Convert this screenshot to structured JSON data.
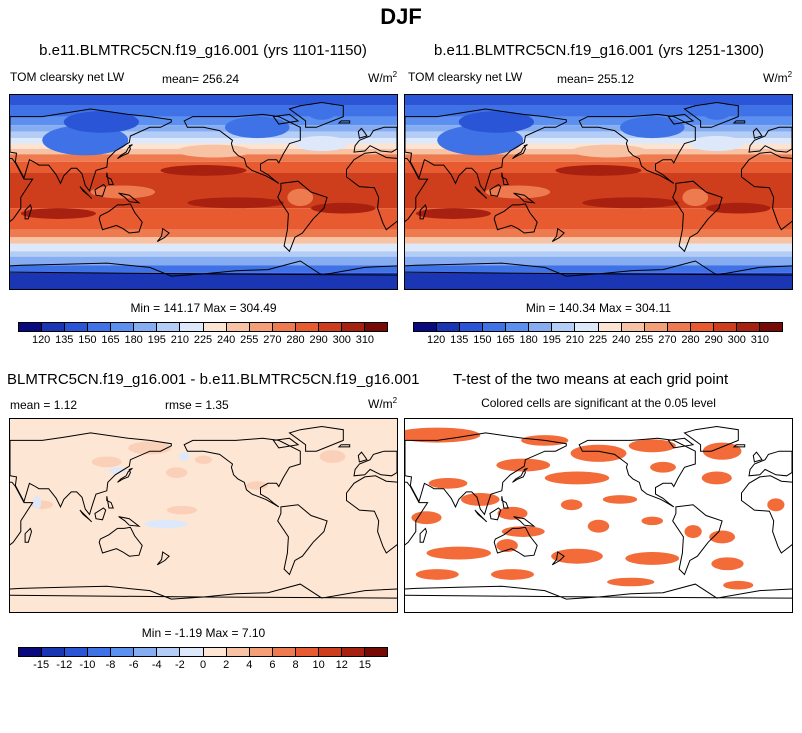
{
  "figure": {
    "title": "DJF",
    "units_prefix": "W/m",
    "units_exp": "2"
  },
  "chart_data": [
    {
      "type": "heatmap",
      "panel": "top-left",
      "title": "b.e11.BLMTRC5CN.f19_g16.001 (yrs 1101-1150)",
      "variable_label": "TOM clearsky net LW",
      "mean_label": "mean= 256.24",
      "mean": 256.24,
      "stats_label": "Min = 141.17 Max = 304.49",
      "min": 141.17,
      "max": 304.49,
      "colorbar_levels": [
        "120",
        "135",
        "150",
        "165",
        "180",
        "195",
        "210",
        "225",
        "240",
        "255",
        "270",
        "280",
        "290",
        "300",
        "310"
      ]
    },
    {
      "type": "heatmap",
      "panel": "top-right",
      "title": "b.e11.BLMTRC5CN.f19_g16.001 (yrs 1251-1300)",
      "variable_label": "TOM clearsky net LW",
      "mean_label": "mean= 255.12",
      "mean": 255.12,
      "stats_label": "Min = 140.34 Max = 304.11",
      "min": 140.34,
      "max": 304.11,
      "colorbar_levels": [
        "120",
        "135",
        "150",
        "165",
        "180",
        "195",
        "210",
        "225",
        "240",
        "255",
        "270",
        "280",
        "290",
        "300",
        "310"
      ]
    },
    {
      "type": "heatmap",
      "panel": "bottom-left",
      "title": "BLMTRC5CN.f19_g16.001 - b.e11.BLMTRC5CN.f19_g16.001",
      "mean_label": "mean =   1.12",
      "mean": 1.12,
      "rmse_label": "rmse =   1.35",
      "rmse": 1.35,
      "stats_label": "Min =  -1.19 Max =   7.10",
      "min": -1.19,
      "max": 7.1,
      "colorbar_levels": [
        "-15",
        "-12",
        "-10",
        "-8",
        "-6",
        "-4",
        "-2",
        "0",
        "2",
        "4",
        "6",
        "8",
        "10",
        "12",
        "15"
      ]
    },
    {
      "type": "heatmap",
      "panel": "bottom-right",
      "title": "T-test of the two means at each grid point",
      "subtitle": "Colored cells are significant at the 0.05 level",
      "significant_color": "#f26b38"
    }
  ],
  "colors": {
    "main_palette": [
      "#0a0a7e",
      "#1a36b4",
      "#2a55d6",
      "#3f72e6",
      "#5b8ff0",
      "#86acf2",
      "#b3cdf6",
      "#dde9fb",
      "#fbe4d4",
      "#f8c3a4",
      "#f49f78",
      "#ee7a4f",
      "#e85a30",
      "#cf3e1c",
      "#a8200f",
      "#780a05"
    ],
    "diff_palette": [
      "#0a0a7e",
      "#1a36b4",
      "#2a55d6",
      "#3f72e6",
      "#5b8ff0",
      "#86acf2",
      "#b3cdf6",
      "#dde9fb",
      "#fde6d4",
      "#f8c3a4",
      "#f49f78",
      "#ee7a4f",
      "#e85a30",
      "#cf3e1c",
      "#a8200f",
      "#780a05"
    ],
    "diff_background": "#fde6d4",
    "diff_light_red": "#fbd0b8",
    "diff_light_blue": "#dde9fb",
    "coast": "#000000"
  }
}
